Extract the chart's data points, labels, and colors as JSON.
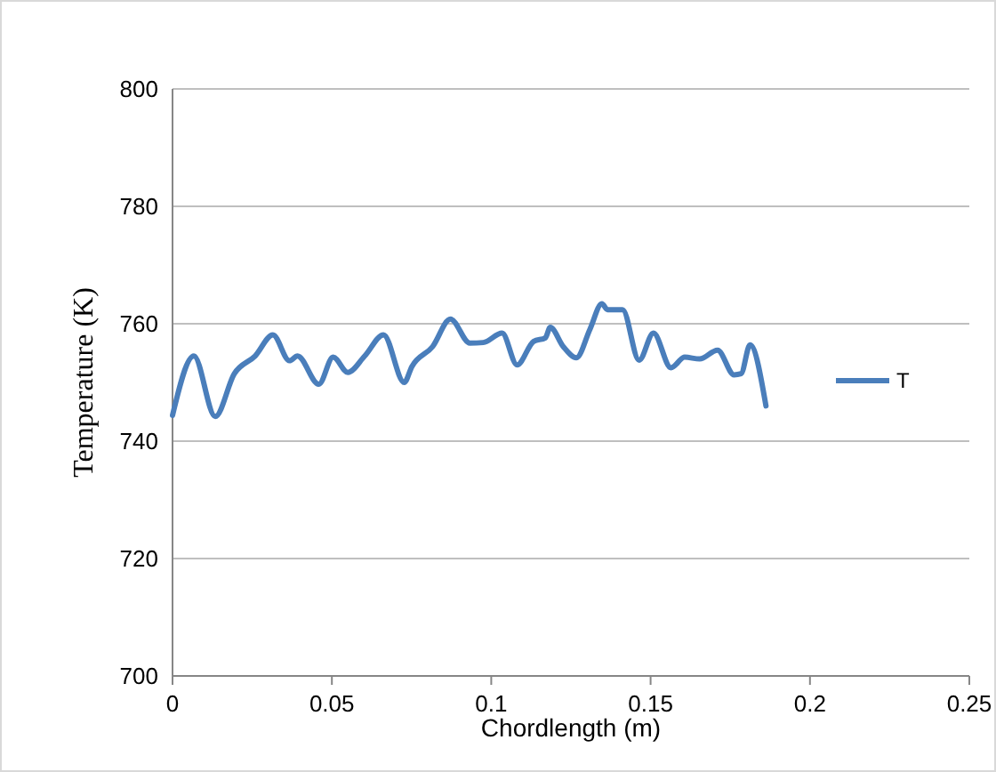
{
  "chart_data": {
    "type": "line",
    "xlabel": "Chordlength (m)",
    "ylabel": "Temperature (K)",
    "xlim": [
      0,
      0.25
    ],
    "xticks": [
      0,
      0.05,
      0.1,
      0.15,
      0.2,
      0.25
    ],
    "ylim": [
      700,
      800
    ],
    "yticks": [
      700,
      720,
      740,
      760,
      780,
      800
    ],
    "grid": "y",
    "legend": "right",
    "marker": "none",
    "line_style": "solid",
    "series": [
      {
        "name": "T",
        "color": "#4a7ebb",
        "x": [
          0,
          0.0067,
          0.0134,
          0.0194,
          0.0259,
          0.0315,
          0.0367,
          0.0392,
          0.0459,
          0.0504,
          0.055,
          0.0603,
          0.0662,
          0.0727,
          0.0751,
          0.0816,
          0.0872,
          0.0933,
          0.0975,
          0.1034,
          0.1081,
          0.1133,
          0.117,
          0.1185,
          0.1226,
          0.1267,
          0.131,
          0.1347,
          0.1365,
          0.1412,
          0.1464,
          0.1509,
          0.1564,
          0.1607,
          0.1654,
          0.171,
          0.1762,
          0.1784,
          0.1812,
          0.1862
        ],
        "values": [
          744.4,
          754.5,
          744.2,
          751.5,
          754.5,
          758.1,
          753.7,
          754.5,
          749.7,
          754.3,
          751.7,
          754.5,
          758.1,
          750,
          752.7,
          756.1,
          760.8,
          756.7,
          756.8,
          758.4,
          753,
          757,
          757.6,
          759.4,
          756.1,
          754.2,
          759.1,
          763.4,
          762.4,
          762.4,
          753.8,
          758.4,
          752.5,
          754.3,
          754,
          755.5,
          751.3,
          751.5,
          756.4,
          746
        ]
      }
    ]
  }
}
